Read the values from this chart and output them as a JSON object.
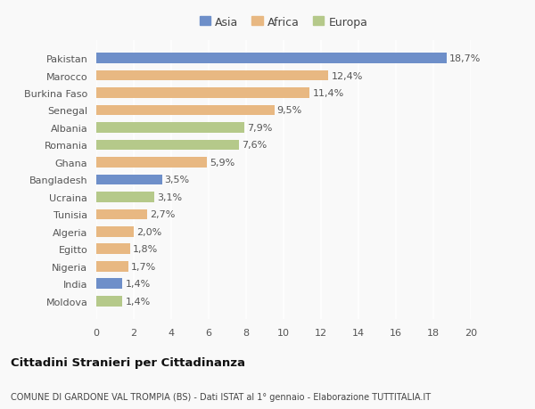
{
  "countries": [
    "Pakistan",
    "Marocco",
    "Burkina Faso",
    "Senegal",
    "Albania",
    "Romania",
    "Ghana",
    "Bangladesh",
    "Ucraina",
    "Tunisia",
    "Algeria",
    "Egitto",
    "Nigeria",
    "India",
    "Moldova"
  ],
  "values": [
    18.7,
    12.4,
    11.4,
    9.5,
    7.9,
    7.6,
    5.9,
    3.5,
    3.1,
    2.7,
    2.0,
    1.8,
    1.7,
    1.4,
    1.4
  ],
  "labels": [
    "18,7%",
    "12,4%",
    "11,4%",
    "9,5%",
    "7,9%",
    "7,6%",
    "5,9%",
    "3,5%",
    "3,1%",
    "2,7%",
    "2,0%",
    "1,8%",
    "1,7%",
    "1,4%",
    "1,4%"
  ],
  "continents": [
    "Asia",
    "Africa",
    "Africa",
    "Africa",
    "Europa",
    "Europa",
    "Africa",
    "Asia",
    "Europa",
    "Africa",
    "Africa",
    "Africa",
    "Africa",
    "Asia",
    "Europa"
  ],
  "colors": {
    "Asia": "#6e8fc9",
    "Africa": "#e8b882",
    "Europa": "#b5c98a"
  },
  "legend_labels": [
    "Asia",
    "Africa",
    "Europa"
  ],
  "title1": "Cittadini Stranieri per Cittadinanza",
  "title2": "COMUNE DI GARDONE VAL TROMPIA (BS) - Dati ISTAT al 1° gennaio - Elaborazione TUTTITALIA.IT",
  "xlim": [
    0,
    20
  ],
  "xticks": [
    0,
    2,
    4,
    6,
    8,
    10,
    12,
    14,
    16,
    18,
    20
  ],
  "background_color": "#f9f9f9",
  "bar_height": 0.6,
  "label_fontsize": 8,
  "tick_fontsize": 8,
  "country_fontsize": 8
}
